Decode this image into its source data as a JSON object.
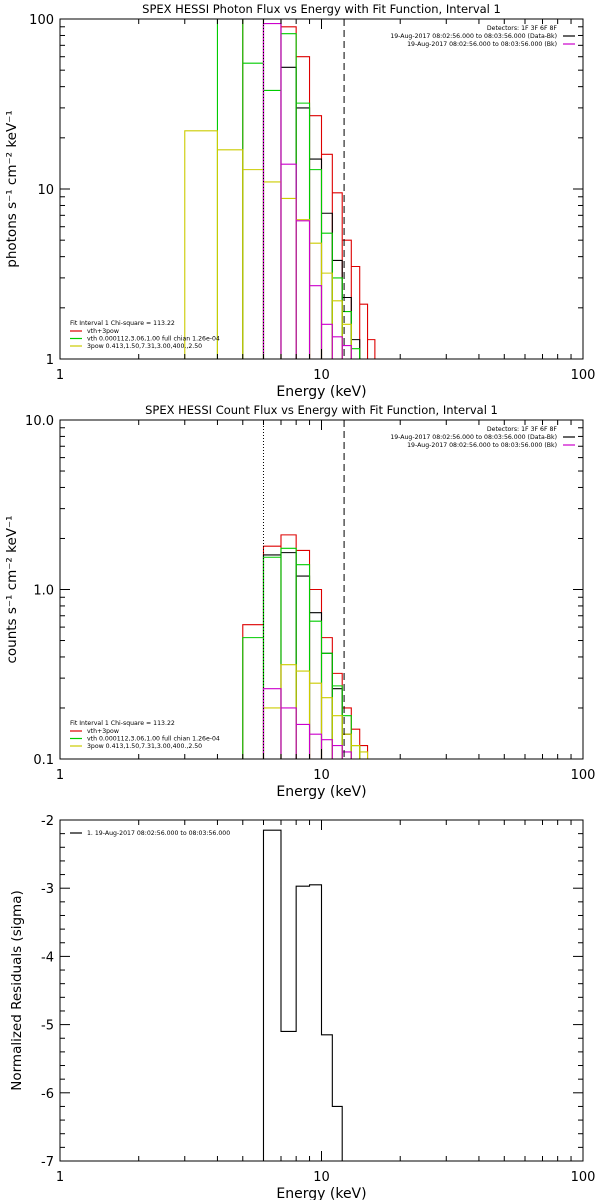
{
  "chart_data": [
    {
      "type": "line",
      "title": "SPEX HESSI Photon Flux vs Energy with Fit Function, Interval 1",
      "xlabel": "Energy (keV)",
      "ylabel": "photons s⁻¹ cm⁻² keV⁻¹",
      "xscale": "log",
      "yscale": "log",
      "xlim": [
        1,
        100
      ],
      "ylim": [
        1,
        100
      ],
      "xticks": [
        {
          "v": 1,
          "label": "1"
        },
        {
          "v": 10,
          "label": "10"
        },
        {
          "v": 100,
          "label": "100"
        }
      ],
      "yticks": [
        {
          "v": 1,
          "label": "1"
        },
        {
          "v": 10,
          "label": "10"
        },
        {
          "v": 100,
          "label": "100"
        }
      ],
      "vlines": [
        {
          "x": 6.0,
          "style": "dotted"
        },
        {
          "x": 12.2,
          "style": "dashed"
        }
      ],
      "legend_topright": {
        "header": "Detectors: 1F 3F 6F 8F",
        "entries": [
          {
            "text": "19-Aug-2017 08:02:56.000 to 08:03:56.000 (Data-Bk)",
            "color": "#000000"
          },
          {
            "text": "19-Aug-2017 08:02:56.000 to 08:03:56.000 (Bk)",
            "color": "#cc00cc"
          }
        ]
      },
      "legend_bottomleft": {
        "header": "Fit Interval 1    Chi-square = 113.22",
        "entries": [
          {
            "text": "vth+3pow",
            "color": "#dd0000"
          },
          {
            "text": "vth 0.000112,3.06,1.00   full chian 1.26e-04",
            "color": "#00cc00"
          },
          {
            "text": "3pow 0.413,1.50,7.31,3.00,400.,2.50",
            "color": "#cccc00"
          }
        ]
      },
      "series": [
        {
          "color": "#dd0000",
          "edges": [
            5.0,
            6.0,
            7.0,
            8.0,
            9.0,
            10.0,
            11.0,
            12.0,
            13.0,
            14.0,
            15.0,
            16.0
          ],
          "values": [
            100,
            100,
            90,
            60,
            27,
            16,
            9.5,
            5,
            3.5,
            2.1,
            1.3,
            1.0
          ]
        },
        {
          "color": "#000000",
          "edges": [
            6.0,
            7.0,
            8.0,
            9.0,
            10.0,
            11.0,
            12.0,
            13.0,
            14.0
          ],
          "values": [
            100,
            52,
            30,
            15,
            7.2,
            3.8,
            2.3,
            1.3,
            1.0
          ]
        },
        {
          "color": "#00cc00",
          "edges": [
            4.0,
            5.0,
            6.0,
            7.0,
            8.0,
            9.0,
            10.0,
            11.0,
            12.0,
            13.0,
            14.0
          ],
          "values": [
            100,
            55,
            38,
            82,
            32,
            13,
            5.5,
            3.0,
            1.9,
            1.15,
            1.0
          ]
        },
        {
          "color": "#cccc00",
          "edges": [
            3.0,
            4.0,
            5.0,
            6.0,
            7.0,
            8.0,
            9.0,
            10.0,
            11.0,
            12.0,
            13.0
          ],
          "values": [
            22,
            17,
            13,
            11,
            8.8,
            6.6,
            4.8,
            3.2,
            2.2,
            1.6,
            1.2
          ]
        },
        {
          "color": "#cc00cc",
          "edges": [
            6.0,
            7.0,
            8.0,
            9.0,
            10.0,
            11.0,
            12.0,
            13.0
          ],
          "values": [
            94,
            14,
            6.5,
            2.7,
            1.6,
            1.35,
            1.2,
            1.1
          ]
        }
      ]
    },
    {
      "type": "line",
      "title": "SPEX HESSI Count Flux vs Energy with Fit Function, Interval 1",
      "xlabel": "Energy (keV)",
      "ylabel": "counts s⁻¹ cm⁻² keV⁻¹",
      "xscale": "log",
      "yscale": "log",
      "xlim": [
        1,
        100
      ],
      "ylim": [
        0.1,
        10
      ],
      "xticks": [
        {
          "v": 1,
          "label": "1"
        },
        {
          "v": 10,
          "label": "10"
        },
        {
          "v": 100,
          "label": "100"
        }
      ],
      "yticks": [
        {
          "v": 0.1,
          "label": "0.1"
        },
        {
          "v": 1,
          "label": "1.0"
        },
        {
          "v": 10,
          "label": "10.0"
        }
      ],
      "vlines": [
        {
          "x": 6.0,
          "style": "dotted"
        },
        {
          "x": 12.2,
          "style": "dashed"
        }
      ],
      "legend_topright": {
        "header": "Detectors: 1F 3F 6F 8F",
        "entries": [
          {
            "text": "19-Aug-2017 08:02:56.000 to 08:03:56.000 (Data-Bk)",
            "color": "#000000"
          },
          {
            "text": "19-Aug-2017 08:02:56.000 to 08:03:56.000 (Bk)",
            "color": "#cc00cc"
          }
        ]
      },
      "legend_bottomleft": {
        "header": "Fit Interval 1    Chi-square = 113.22",
        "entries": [
          {
            "text": "vth+3pow",
            "color": "#dd0000"
          },
          {
            "text": "vth 0.000112,3.06,1.00   full chian 1.26e-04",
            "color": "#00cc00"
          },
          {
            "text": "3pow 0.413,1.50,7.31,3.00,400.,2.50",
            "color": "#cccc00"
          }
        ]
      },
      "series": [
        {
          "color": "#dd0000",
          "edges": [
            5.0,
            6.0,
            7.0,
            8.0,
            9.0,
            10.0,
            11.0,
            12.0,
            13.0,
            14.0,
            15.0,
            16.0
          ],
          "values": [
            0.62,
            1.8,
            2.1,
            1.7,
            1.0,
            0.52,
            0.32,
            0.2,
            0.15,
            0.12,
            0.1
          ]
        },
        {
          "color": "#000000",
          "edges": [
            6.0,
            7.0,
            8.0,
            9.0,
            10.0,
            11.0,
            12.0,
            13.0,
            14.0
          ],
          "values": [
            1.6,
            1.65,
            1.2,
            0.73,
            0.42,
            0.26,
            0.14,
            0.1
          ]
        },
        {
          "color": "#00cc00",
          "edges": [
            5.0,
            6.0,
            7.0,
            8.0,
            9.0,
            10.0,
            11.0,
            12.0,
            13.0,
            14.0
          ],
          "values": [
            0.52,
            1.55,
            1.75,
            1.4,
            0.65,
            0.42,
            0.27,
            0.18,
            0.12
          ]
        },
        {
          "color": "#cccc00",
          "edges": [
            6.0,
            7.0,
            8.0,
            9.0,
            10.0,
            11.0,
            12.0,
            13.0,
            14.0,
            15.0
          ],
          "values": [
            0.2,
            0.36,
            0.33,
            0.28,
            0.23,
            0.18,
            0.14,
            0.12,
            0.11
          ]
        },
        {
          "color": "#cc00cc",
          "edges": [
            6.0,
            7.0,
            8.0,
            9.0,
            10.0,
            11.0,
            12.0,
            13.0
          ],
          "values": [
            0.26,
            0.2,
            0.16,
            0.14,
            0.13,
            0.12,
            0.11
          ]
        }
      ]
    },
    {
      "type": "line",
      "title": "",
      "xlabel": "Energy (keV)",
      "ylabel": "Normalized Residuals (sigma)",
      "xscale": "log",
      "yscale": "linear",
      "xlim": [
        1,
        100
      ],
      "ylim": [
        -7,
        -2
      ],
      "xticks": [
        {
          "v": 1,
          "label": "1"
        },
        {
          "v": 10,
          "label": "10"
        },
        {
          "v": 100,
          "label": "100"
        }
      ],
      "yticks": [
        {
          "v": -7,
          "label": "-7"
        },
        {
          "v": -6,
          "label": "-6"
        },
        {
          "v": -5,
          "label": "-5"
        },
        {
          "v": -4,
          "label": "-4"
        },
        {
          "v": -3,
          "label": "-3"
        },
        {
          "v": -2,
          "label": "-2"
        }
      ],
      "legend_topleft": {
        "entries": [
          {
            "text": "1. 19-Aug-2017 08:02:56.000 to 08:03:56.000",
            "color": "#000000"
          }
        ]
      },
      "series": [
        {
          "color": "#000000",
          "edges": [
            6.0,
            7.0,
            8.0,
            9.0,
            10.0,
            11.0,
            12.0
          ],
          "values": [
            -2.15,
            -5.1,
            -2.97,
            -2.95,
            -5.15,
            -6.2
          ],
          "drop_to_floor": true
        }
      ]
    }
  ]
}
